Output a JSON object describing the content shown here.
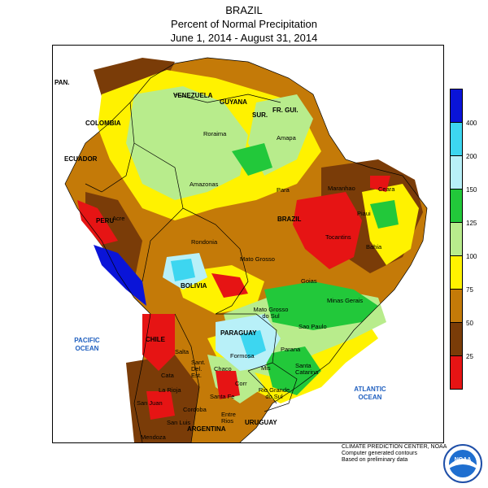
{
  "title": {
    "line1": "BRAZIL",
    "line2": "Percent of Normal Precipitation",
    "line3": "June 1, 2014 - August 31, 2014"
  },
  "legend": {
    "ticks": [
      "400",
      "200",
      "150",
      "125",
      "100",
      "75",
      "50",
      "25"
    ],
    "colors": [
      "#0a14d8",
      "#3dd6f0",
      "#b8f0f8",
      "#22c83a",
      "#b8ec8c",
      "#fff200",
      "#c47a08",
      "#7a3c08",
      "#e61414"
    ]
  },
  "map": {
    "oceans": {
      "pacific": "PACIFIC OCEAN",
      "atlantic": "ATLANTIC OCEAN"
    },
    "countries": {
      "venezuela": "VENEZUELA",
      "guyana": "GUYANA",
      "suriname": "SUR.",
      "fr_guiana": "FR. GUI.",
      "colombia": "COLOMBIA",
      "ecuador": "ECUADOR",
      "peru": "PERU",
      "brazil": "BRAZIL",
      "bolivia": "BOLIVIA",
      "paraguay": "PARAGUAY",
      "chile": "CHILE",
      "argentina": "ARGENTINA",
      "uruguay": "URUGUAY",
      "panama": "PAN."
    },
    "states": {
      "roraima": "Roraima",
      "amapa": "Amapa",
      "amazonas": "Amazonas",
      "para": "Para",
      "maranhao": "Maranhao",
      "ceara": "Ceara",
      "piaui": "Piaui",
      "acre": "Acre",
      "rondonia": "Rondonia",
      "tocantins": "Tocantins",
      "bahia": "Bahia",
      "mato_grosso": "Mato Grosso",
      "goias": "Goias",
      "minas_gerais": "Minas Gerais",
      "mato_grosso_do_sul": "Mato Grosso do Sul",
      "sao_paulo": "Sao Paulo",
      "parana": "Parana",
      "santa_catarina": "Santa Catarina",
      "rio_grande_do_sul": "Rio Grande do Sul",
      "salta": "Salta",
      "formosa": "Formosa",
      "chaco": "Chaco",
      "misiones": "Mis",
      "corrientes": "Corr",
      "sant_del_est": "Sant. Del. Est.",
      "catamarca": "Cata",
      "la_rioja": "La Rioja",
      "san_juan": "San Juan",
      "cordoba": "Cordoba",
      "santa_fe": "Santa Fe",
      "entre_rios": "Entre Rios",
      "mendoza": "Mendoza",
      "san_luis": "San Luis"
    }
  },
  "credit": {
    "line1": "CLIMATE PREDICTION CENTER, NOAA",
    "line2": "Computer generated contours",
    "line3": "Based on preliminary data"
  },
  "logo": {
    "text": "NOAA"
  }
}
